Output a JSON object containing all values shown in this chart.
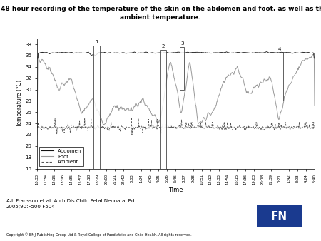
{
  "title": "A 48 hour recording of the temperature of the skin on the abdomen and foot, as well as the\nambient temperature.",
  "xlabel": "Time",
  "ylabel": "Temperature (°C)",
  "ylim": [
    16,
    39
  ],
  "yticks": [
    16,
    18,
    20,
    22,
    24,
    26,
    28,
    30,
    32,
    34,
    36,
    38
  ],
  "abdomen_color": "#111111",
  "foot_color": "#999999",
  "ambient_color": "#555555",
  "background_color": "#ffffff",
  "citation": "A-L Fransson et al. Arch Dis Child Fetal Neonatal Ed\n2005;90:F500-F504",
  "copyright": "Copyright © BMJ Publishing Group Ltd & Royal College of Paediatrics and Child Health. All rights reserved.",
  "time_labels": [
    "10:33",
    "11:34",
    "12:15",
    "13:16",
    "14:35",
    "15:57",
    "17:18",
    "18:29",
    "20:00",
    "21:21",
    "22:42",
    "0:03",
    "1:24",
    "2:45",
    "4:05",
    "5:26",
    "6:46",
    "8:07",
    "9:28",
    "10:51",
    "12:12",
    "13:33",
    "14:54",
    "16:15",
    "17:36",
    "19:03",
    "20:18",
    "21:39",
    "0:21",
    "1:42",
    "3:03",
    "4:24",
    "5:40"
  ],
  "rect_labels": [
    "1",
    "2",
    "3",
    "4"
  ],
  "n_points": 600,
  "fn_color": "#1a3a8f"
}
